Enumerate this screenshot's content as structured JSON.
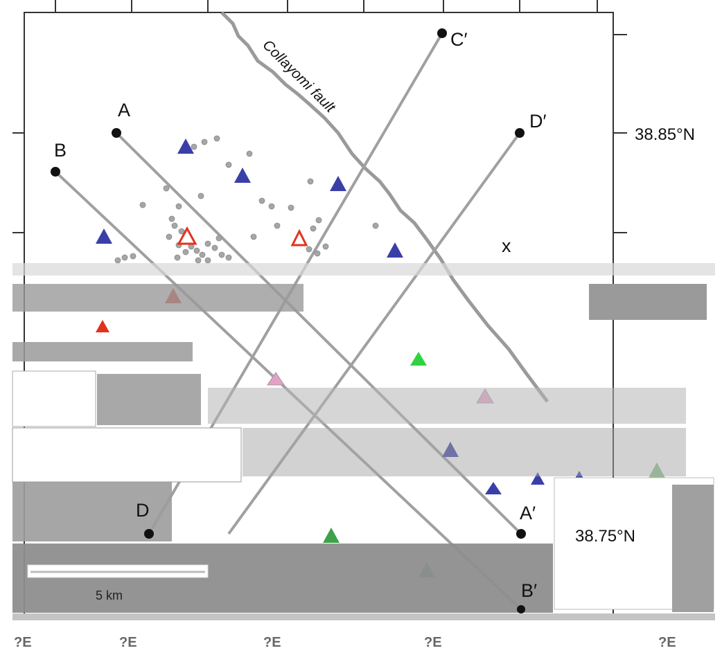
{
  "map": {
    "fault_name": "Collayomi fault",
    "latitude_labels": [
      "38.85°N",
      "38.75°N"
    ],
    "longitude_labels": [
      "?E",
      "?E",
      "?E",
      "?E",
      "?E"
    ],
    "scale_label": "5 km",
    "marker_x": "x",
    "profile_endpoints": {
      "A": "A",
      "A_prime": "A′",
      "B": "B",
      "B_prime": "B′",
      "C_prime": "C′",
      "D": "D",
      "D_prime": "D′"
    },
    "legend_colors": {
      "station_blue": "#3a3fa8",
      "station_red": "#e2321e",
      "station_green": "#3fa14a",
      "station_pink": "#e6a0c8",
      "seismicity_gray": "#9e9e9e",
      "fault_gray": "#9a9a9a",
      "profile_gray": "#a0a0a0"
    },
    "symbols": [
      "triangle-station",
      "hollow-triangle-station",
      "earthquake-dot",
      "profile-endpoint"
    ]
  }
}
